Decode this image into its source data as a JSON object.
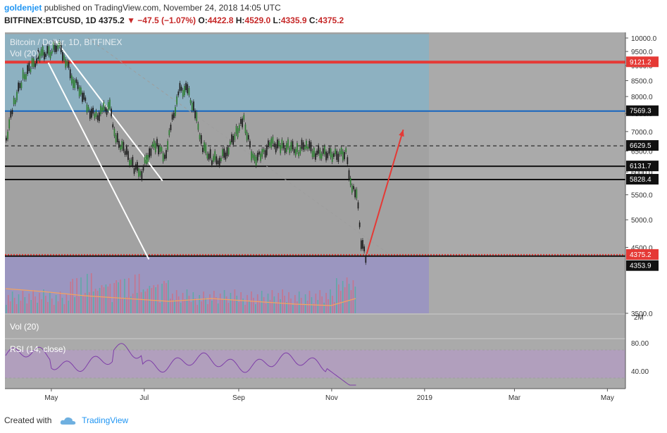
{
  "header": {
    "user": "goldenjet",
    "published": "published on TradingView.com, November 24, 2018 14:05 UTC",
    "symbol": "BITFINEX:BTCUSD, 1D",
    "close": "4375.2",
    "change": "−47.5 (−1.07%)",
    "o_label": "O:",
    "o_value": "4422.8",
    "h_label": "H:",
    "h_value": "4529.0",
    "l_label": "L:",
    "l_value": "4335.9",
    "c_label": "C:",
    "c_value": "4375.2"
  },
  "footer": {
    "created_with": "Created with",
    "brand": "TradingView"
  },
  "chart_data": {
    "type": "candlestick",
    "title": "Bitcoin / Dollar, 1D, BITFINEX",
    "overlay_volume_label": "Vol (20)",
    "volume_pane_label": "Vol (20)",
    "volume_axis_label": "2M",
    "rsi_label": "RSI (14, close)",
    "x_ticks": [
      "May",
      "Jul",
      "Sep",
      "Nov",
      "2019",
      "Mar",
      "May"
    ],
    "y_ticks": [
      "10000.0",
      "9500.0",
      "9000.0",
      "8500.0",
      "8000.0",
      "7500.0",
      "7000.0",
      "6500.0",
      "6000.0",
      "5500.0",
      "5000.0",
      "4500.0",
      "3500.0"
    ],
    "ylim": [
      3500,
      10000
    ],
    "log_scale": true,
    "rsi_ticks": [
      "80.00",
      "40.00"
    ],
    "rsi_band": [
      30,
      70
    ],
    "price_levels": [
      {
        "label": "9121.2",
        "value": 9121.2,
        "color": "#e53935",
        "style": "solid"
      },
      {
        "label": "7569.3",
        "value": 7569.3,
        "color": "#1565c0",
        "style": "solid"
      },
      {
        "label": "6629.5",
        "value": 6629.5,
        "color": "#111111",
        "style": "dashed"
      },
      {
        "label": "6131.7",
        "value": 6131.7,
        "color": "#111111",
        "style": "solid"
      },
      {
        "label": "5828.4",
        "value": 5828.4,
        "color": "#111111",
        "style": "solid"
      },
      {
        "label": "4375.2",
        "value": 4375.2,
        "color": "#e53935",
        "style": "dotted"
      },
      {
        "label": "4353.9",
        "value": 4353.9,
        "color": "#111111",
        "style": "solid"
      }
    ],
    "price_path": [
      [
        "2018-04-01",
        6800
      ],
      [
        "2018-04-06",
        7800
      ],
      [
        "2018-04-12",
        8600
      ],
      [
        "2018-04-18",
        9000
      ],
      [
        "2018-04-24",
        9400
      ],
      [
        "2018-05-01",
        9500
      ],
      [
        "2018-05-05",
        9800
      ],
      [
        "2018-05-10",
        9200
      ],
      [
        "2018-05-15",
        8500
      ],
      [
        "2018-05-20",
        8200
      ],
      [
        "2018-05-25",
        7600
      ],
      [
        "2018-05-30",
        7400
      ],
      [
        "2018-06-04",
        7600
      ],
      [
        "2018-06-08",
        7700
      ],
      [
        "2018-06-12",
        6800
      ],
      [
        "2018-06-18",
        6500
      ],
      [
        "2018-06-24",
        6100
      ],
      [
        "2018-06-29",
        6000
      ],
      [
        "2018-07-04",
        6500
      ],
      [
        "2018-07-09",
        6700
      ],
      [
        "2018-07-14",
        6300
      ],
      [
        "2018-07-19",
        7300
      ],
      [
        "2018-07-24",
        8200
      ],
      [
        "2018-07-29",
        8200
      ],
      [
        "2018-08-03",
        7500
      ],
      [
        "2018-08-08",
        6600
      ],
      [
        "2018-08-14",
        6300
      ],
      [
        "2018-08-19",
        6300
      ],
      [
        "2018-08-24",
        6500
      ],
      [
        "2018-08-30",
        7000
      ],
      [
        "2018-09-04",
        7300
      ],
      [
        "2018-09-10",
        6300
      ],
      [
        "2018-09-16",
        6400
      ],
      [
        "2018-09-22",
        6700
      ],
      [
        "2018-09-28",
        6600
      ],
      [
        "2018-10-04",
        6600
      ],
      [
        "2018-10-10",
        6500
      ],
      [
        "2018-10-15",
        6700
      ],
      [
        "2018-10-20",
        6450
      ],
      [
        "2018-10-27",
        6450
      ],
      [
        "2018-11-03",
        6400
      ],
      [
        "2018-11-10",
        6450
      ],
      [
        "2018-11-14",
        5600
      ],
      [
        "2018-11-17",
        5550
      ],
      [
        "2018-11-20",
        4600
      ],
      [
        "2018-11-23",
        4350
      ],
      [
        "2018-11-24",
        4375.2
      ]
    ],
    "drawings": [
      {
        "kind": "channel-line",
        "color": "#ffffff",
        "from": [
          "2018-05-04",
          9900
        ],
        "to": [
          "2018-07-13",
          5800
        ]
      },
      {
        "kind": "channel-line",
        "color": "#ffffff",
        "from": [
          "2018-04-29",
          9100
        ],
        "to": [
          "2018-07-04",
          4300
        ]
      },
      {
        "kind": "trend-line",
        "color": "#9e9e9e",
        "style": "dashed",
        "from": [
          "2018-05-25",
          10000
        ],
        "to": [
          "2018-12-08",
          4400
        ]
      },
      {
        "kind": "arrow",
        "color": "#e53935",
        "from": [
          "2018-11-24",
          4390
        ],
        "to": [
          "2018-12-18",
          7050
        ]
      }
    ],
    "zones": [
      {
        "kind": "upper-zone",
        "color": "#8ab4c7",
        "y_top": 10150,
        "y_bottom": 7569.3
      },
      {
        "kind": "lower-zone",
        "color": "#9a94c6",
        "y_top": 4353.9,
        "y_bottom": 3500
      }
    ]
  }
}
